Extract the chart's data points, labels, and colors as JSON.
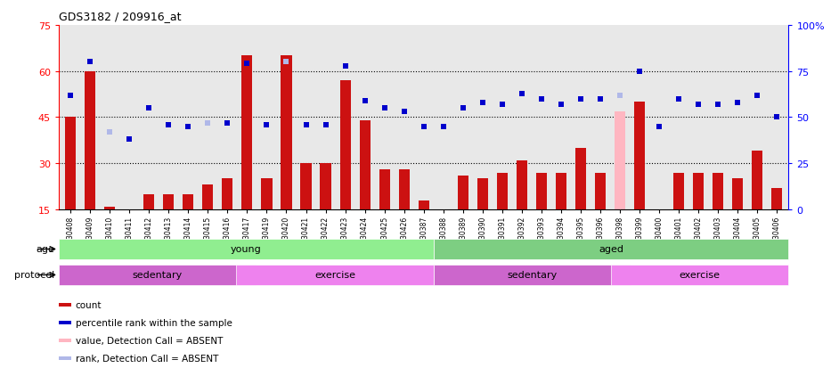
{
  "title": "GDS3182 / 209916_at",
  "samples": [
    "GSM230408",
    "GSM230409",
    "GSM230410",
    "GSM230411",
    "GSM230412",
    "GSM230413",
    "GSM230414",
    "GSM230415",
    "GSM230416",
    "GSM230417",
    "GSM230419",
    "GSM230420",
    "GSM230421",
    "GSM230422",
    "GSM230423",
    "GSM230424",
    "GSM230425",
    "GSM230426",
    "GSM230387",
    "GSM230388",
    "GSM230389",
    "GSM230390",
    "GSM230391",
    "GSM230392",
    "GSM230393",
    "GSM230394",
    "GSM230395",
    "GSM230396",
    "GSM230398",
    "GSM230399",
    "GSM230400",
    "GSM230401",
    "GSM230402",
    "GSM230403",
    "GSM230404",
    "GSM230405",
    "GSM230406"
  ],
  "bar_values": [
    45,
    60,
    16,
    15,
    20,
    20,
    20,
    23,
    25,
    65,
    25,
    65,
    30,
    30,
    57,
    44,
    28,
    28,
    18,
    8,
    26,
    25,
    27,
    31,
    27,
    27,
    35,
    27,
    47,
    50,
    8,
    27,
    27,
    27,
    25,
    34,
    22
  ],
  "absent_bar": [
    false,
    false,
    false,
    false,
    false,
    false,
    false,
    false,
    false,
    false,
    false,
    false,
    false,
    false,
    false,
    false,
    false,
    false,
    false,
    false,
    false,
    false,
    false,
    false,
    false,
    false,
    false,
    false,
    true,
    false,
    false,
    false,
    false,
    false,
    false,
    false,
    false
  ],
  "dot_values": [
    62,
    80,
    42,
    38,
    55,
    46,
    45,
    47,
    47,
    79,
    46,
    80,
    46,
    46,
    78,
    59,
    55,
    53,
    45,
    45,
    55,
    58,
    57,
    63,
    60,
    57,
    60,
    60,
    62,
    75,
    45,
    60,
    57,
    57,
    58,
    62,
    50
  ],
  "absent_dot": [
    false,
    false,
    true,
    false,
    false,
    false,
    false,
    true,
    false,
    false,
    false,
    true,
    false,
    false,
    false,
    false,
    false,
    false,
    false,
    false,
    false,
    false,
    false,
    false,
    false,
    false,
    false,
    false,
    true,
    false,
    false,
    false,
    false,
    false,
    false,
    false,
    false
  ],
  "ylim_left": [
    15,
    75
  ],
  "ylim_right": [
    0,
    100
  ],
  "yticks_left": [
    15,
    30,
    45,
    60,
    75
  ],
  "yticks_right": [
    0,
    25,
    50,
    75,
    100
  ],
  "hlines": [
    30,
    45,
    60
  ],
  "age_groups": [
    {
      "label": "young",
      "start": 0,
      "end": 18,
      "color": "#90ee90"
    },
    {
      "label": "aged",
      "start": 19,
      "end": 36,
      "color": "#7dce82"
    }
  ],
  "protocol_groups": [
    {
      "label": "sedentary",
      "start": 0,
      "end": 9,
      "color": "#cc66cc"
    },
    {
      "label": "exercise",
      "start": 9,
      "end": 18,
      "color": "#ee82ee"
    },
    {
      "label": "sedentary",
      "start": 19,
      "end": 28,
      "color": "#cc66cc"
    },
    {
      "label": "exercise",
      "start": 28,
      "end": 36,
      "color": "#ee82ee"
    }
  ],
  "bar_color_normal": "#cc1111",
  "bar_color_absent": "#ffb6c1",
  "dot_color_normal": "#0000cc",
  "dot_color_absent": "#b0b8e8",
  "bg_color": "#e8e8e8",
  "legend_items": [
    {
      "color": "#cc1111",
      "label": "count"
    },
    {
      "color": "#0000cc",
      "label": "percentile rank within the sample"
    },
    {
      "color": "#ffb6c1",
      "label": "value, Detection Call = ABSENT"
    },
    {
      "color": "#b0b8e8",
      "label": "rank, Detection Call = ABSENT"
    }
  ]
}
